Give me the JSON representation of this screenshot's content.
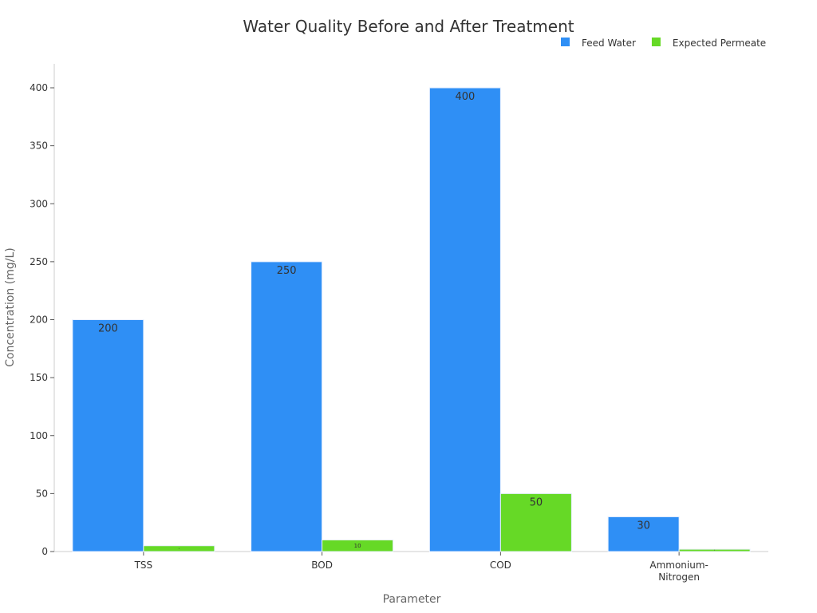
{
  "chart_data": {
    "type": "bar",
    "title": "Water Quality Before and After Treatment",
    "xlabel": "Parameter",
    "ylabel": "Concentration (mg/L)",
    "categories": [
      "TSS",
      "BOD",
      "COD",
      "Ammonium-\nNitrogen"
    ],
    "series": [
      {
        "name": "Feed Water",
        "color": "#2f8ff5",
        "values": [
          200,
          250,
          400,
          30
        ]
      },
      {
        "name": "Expected Permeate",
        "color": "#66d926",
        "values": [
          5,
          10,
          50,
          2
        ]
      }
    ],
    "ylim": [
      0,
      420
    ],
    "yticks": [
      0,
      50,
      100,
      150,
      200,
      250,
      300,
      350,
      400
    ],
    "grid": false,
    "legend": "top-right"
  }
}
